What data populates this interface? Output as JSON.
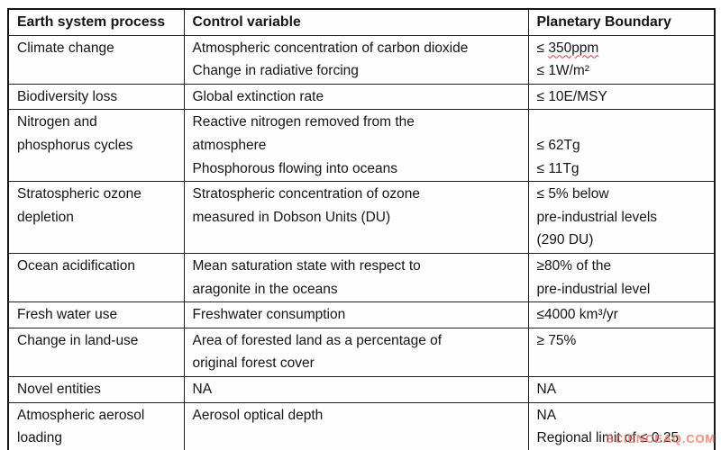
{
  "watermark": "SCIENCEAQ.COM",
  "colors": {
    "border": "#1f1f1f",
    "text": "#151515",
    "spellcheck_underline": "#e03a2f",
    "watermark": "#e04e40",
    "background": "#ffffff"
  },
  "table": {
    "headers": [
      "Earth system process",
      "Control variable",
      "Planetary Boundary"
    ],
    "rows": [
      {
        "process": [
          "Climate change"
        ],
        "control": [
          "Atmospheric concentration of carbon dioxide",
          "Change in radiative forcing"
        ],
        "boundary": [
          {
            "t": "≤ 350ppm",
            "wavy": "350ppm"
          },
          "≤ 1W/m²"
        ]
      },
      {
        "process": [
          "Biodiversity loss"
        ],
        "control": [
          "Global extinction rate"
        ],
        "boundary": [
          "≤ 10E/MSY"
        ]
      },
      {
        "process": [
          "Nitrogen and",
          "phosphorus cycles"
        ],
        "control": [
          "Reactive nitrogen removed from the",
          "atmosphere",
          "Phosphorous flowing into oceans"
        ],
        "boundary": [
          "",
          "≤ 62Tg",
          "≤ 11Tg"
        ]
      },
      {
        "process": [
          "Stratospheric ozone",
          "depletion"
        ],
        "control": [
          "Stratospheric concentration of ozone",
          "measured in Dobson Units (DU)"
        ],
        "boundary": [
          "≤ 5% below",
          "pre-industrial levels",
          "(290 DU)"
        ]
      },
      {
        "process": [
          "Ocean acidification"
        ],
        "control": [
          "Mean saturation state with respect to",
          "aragonite in the oceans"
        ],
        "boundary": [
          "≥80% of the",
          "pre-industrial level"
        ]
      },
      {
        "process": [
          "Fresh water use"
        ],
        "control": [
          "Freshwater consumption"
        ],
        "boundary": [
          "≤4000 km³/yr"
        ]
      },
      {
        "process": [
          "Change in land-use"
        ],
        "control": [
          "Area of forested land as a percentage of",
          "original forest cover"
        ],
        "boundary": [
          "≥ 75%"
        ]
      },
      {
        "process": [
          "Novel entities"
        ],
        "control": [
          "NA"
        ],
        "boundary": [
          "NA"
        ]
      },
      {
        "process": [
          "Atmospheric aerosol",
          "loading"
        ],
        "control": [
          "Aerosol optical depth"
        ],
        "boundary": [
          "NA",
          "Regional limit of ≤ 0.25"
        ]
      }
    ]
  }
}
